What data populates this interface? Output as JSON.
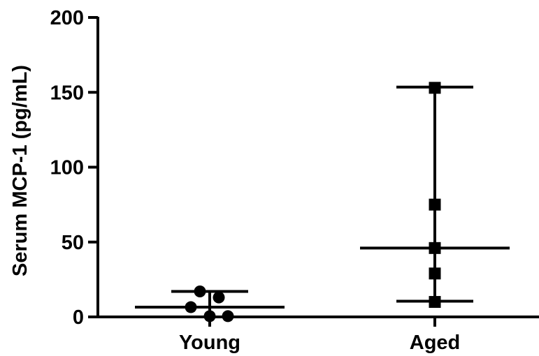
{
  "chart_data": {
    "type": "scatter",
    "ylabel": "Serum MCP-1 (pg/mL)",
    "xlabel": "",
    "title": "",
    "ylim": [
      0,
      200
    ],
    "yticks": [
      0,
      50,
      100,
      150,
      200
    ],
    "categories": [
      "Young",
      "Aged"
    ],
    "groups": [
      {
        "category": "Young",
        "marker": "circle",
        "points": [
          17,
          13,
          6.5,
          0.5,
          0.5
        ],
        "center": 6.5,
        "lower": 0,
        "upper": 17
      },
      {
        "category": "Aged",
        "marker": "square",
        "points": [
          153,
          75,
          46,
          29,
          10
        ],
        "center": 46,
        "lower": 10.5,
        "upper": 153.5
      }
    ],
    "grid": false,
    "color": "#000000"
  }
}
